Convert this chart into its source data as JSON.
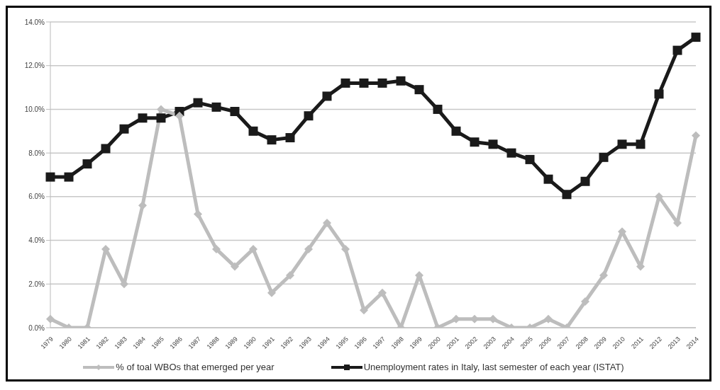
{
  "chart_data": {
    "type": "line",
    "categories": [
      "1979",
      "1980",
      "1981",
      "1982",
      "1983",
      "1984",
      "1985",
      "1986",
      "1987",
      "1988",
      "1989",
      "1990",
      "1991",
      "1992",
      "1993",
      "1994",
      "1995",
      "1996",
      "1997",
      "1998",
      "1999",
      "2000",
      "2001",
      "2002",
      "2003",
      "2004",
      "2005",
      "2006",
      "2007",
      "2008",
      "2009",
      "2010",
      "2011",
      "2012",
      "2013",
      "2014"
    ],
    "series": [
      {
        "name": "% of toal WBOs that emerged per year",
        "color": "#bdbdbd",
        "marker": "diamond",
        "values": [
          0.4,
          0,
          0,
          3.6,
          2.0,
          5.6,
          10.0,
          9.7,
          5.2,
          3.6,
          2.8,
          3.6,
          1.6,
          2.4,
          3.6,
          4.8,
          3.6,
          0.8,
          1.6,
          0,
          2.4,
          0,
          0.4,
          0.4,
          0.4,
          0,
          0,
          0.4,
          0,
          1.2,
          2.4,
          4.4,
          2.8,
          6.0,
          4.8,
          8.8
        ]
      },
      {
        "name": "Unemployment rates in Italy, last semester of each year (ISTAT)",
        "color": "#1a1a1a",
        "marker": "square",
        "values": [
          6.9,
          6.9,
          7.5,
          8.2,
          9.1,
          9.6,
          9.6,
          9.9,
          10.3,
          10.1,
          9.9,
          9.0,
          8.6,
          8.7,
          9.7,
          10.6,
          11.2,
          11.2,
          11.2,
          11.3,
          10.9,
          10.0,
          9.0,
          8.5,
          8.4,
          8.0,
          7.7,
          6.8,
          6.1,
          6.7,
          7.8,
          8.4,
          8.4,
          10.7,
          12.7,
          13.3
        ]
      }
    ],
    "ylim": [
      0,
      14
    ],
    "yticks": [
      {
        "value": 0,
        "label": "0.0%"
      },
      {
        "value": 2,
        "label": "2.0%"
      },
      {
        "value": 4,
        "label": "4.0%"
      },
      {
        "value": 6,
        "label": "6.0%"
      },
      {
        "value": 8,
        "label": "8.0%"
      },
      {
        "value": 10,
        "label": "10.0%"
      },
      {
        "value": 12,
        "label": "12.0%"
      },
      {
        "value": 14,
        "label": "14.0%"
      }
    ],
    "grid": "y",
    "legend": "bottom",
    "line_style": "solid"
  }
}
